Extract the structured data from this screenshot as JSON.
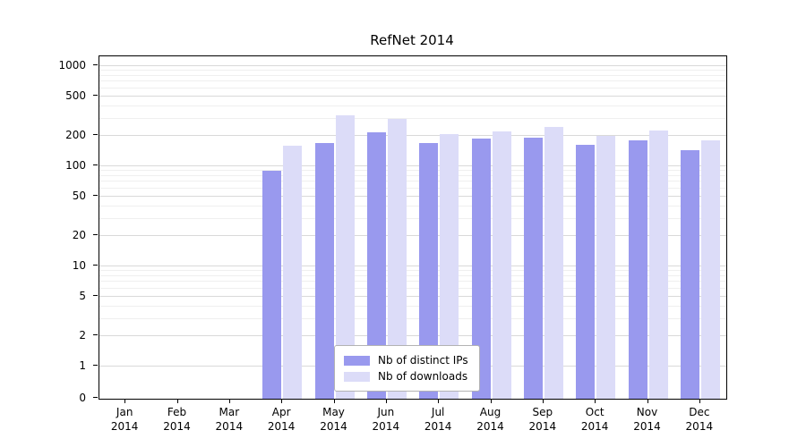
{
  "chart_data": {
    "type": "bar",
    "title": "RefNet 2014",
    "xlabel": "",
    "ylabel": "",
    "yscale": "symlog",
    "yticks": [
      0,
      1,
      2,
      5,
      10,
      20,
      50,
      100,
      200,
      500,
      1000
    ],
    "ylim": [
      0,
      1250
    ],
    "grid": true,
    "legend_position": "lower center",
    "categories": [
      "Jan 2014",
      "Feb 2014",
      "Mar 2014",
      "Apr 2014",
      "May 2014",
      "Jun 2014",
      "Jul 2014",
      "Aug 2014",
      "Sep 2014",
      "Oct 2014",
      "Nov 2014",
      "Dec 2014"
    ],
    "series": [
      {
        "name": "Nb of distinct IPs",
        "color": "#9999ee",
        "values": [
          0,
          0,
          0,
          90,
          170,
          220,
          170,
          190,
          195,
          165,
          180,
          145
        ]
      },
      {
        "name": "Nb of downloads",
        "color": "#dcdcf8",
        "values": [
          0,
          0,
          0,
          160,
          320,
          300,
          210,
          225,
          245,
          200,
          230,
          180
        ]
      }
    ]
  }
}
